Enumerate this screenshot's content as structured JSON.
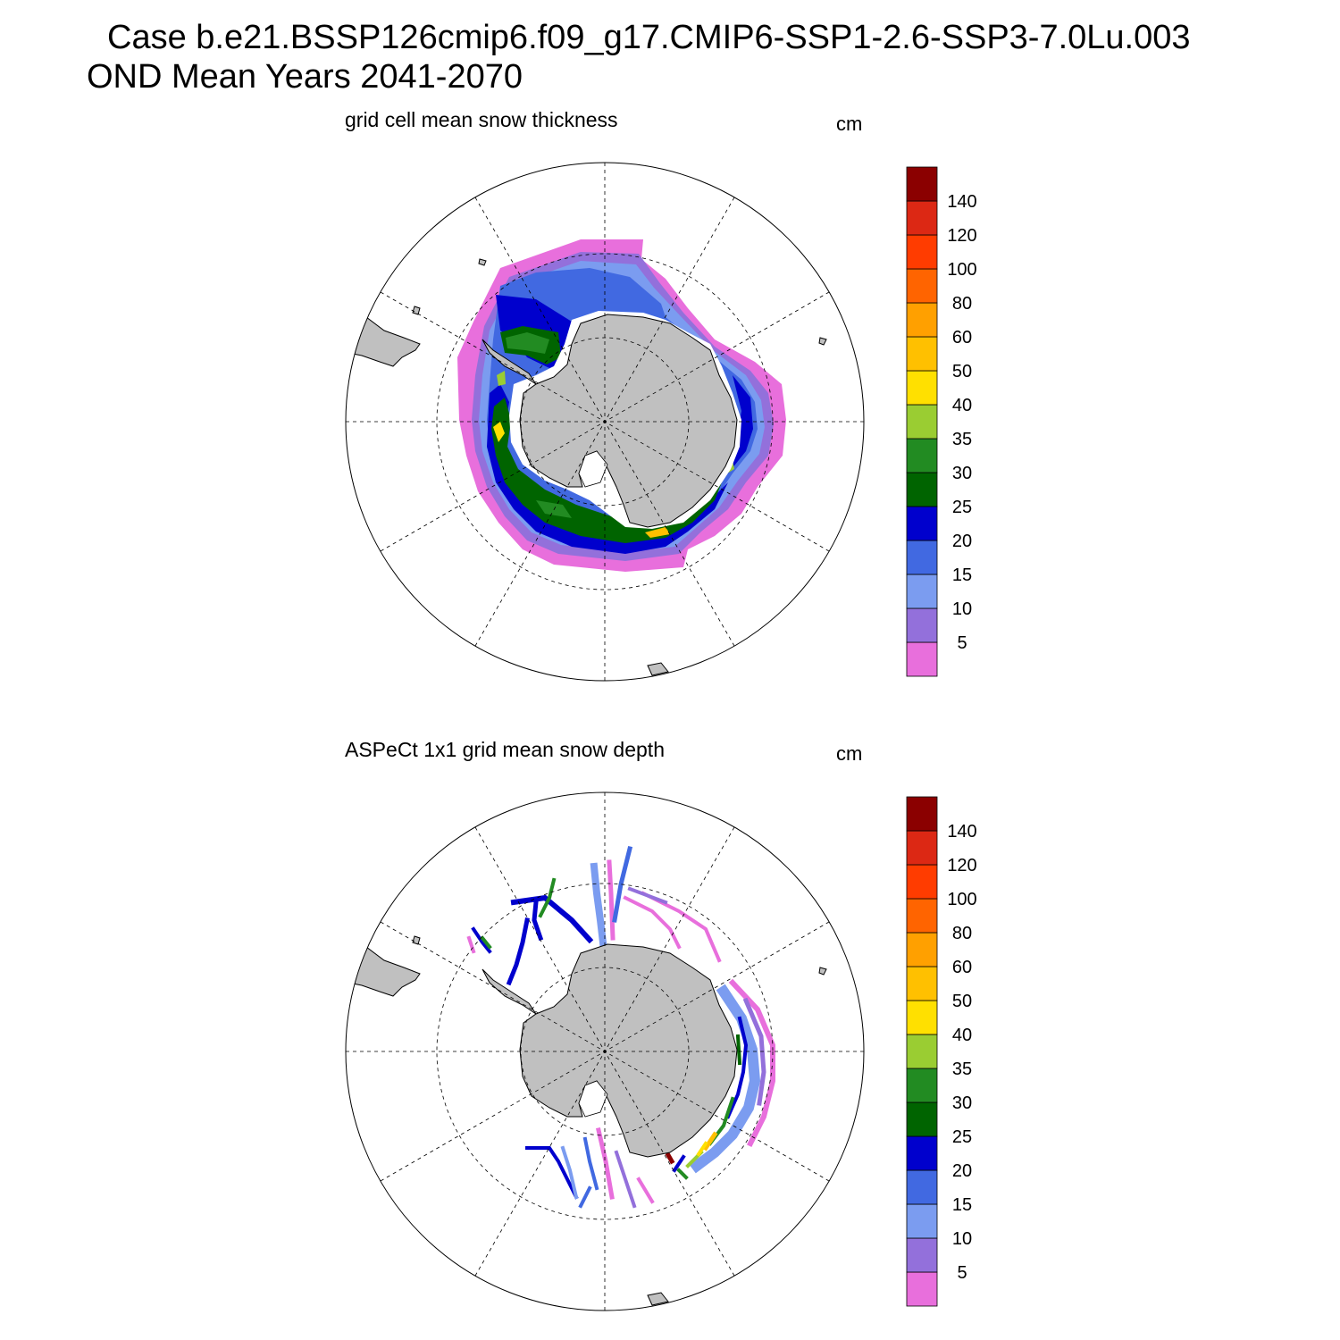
{
  "title_lines": [
    "Case b.e21.BSSP126cmip6.f09_g17.CMIP6-SSP1-2.6-SSP3-7.0Lu.003",
    "OND Mean   Years 2041-2070"
  ],
  "panels": [
    {
      "id": "model",
      "title": "grid cell mean snow thickness",
      "units": "cm"
    },
    {
      "id": "obs",
      "title": "ASPeCt 1x1 grid mean snow depth",
      "units": "cm"
    }
  ],
  "colorbar": {
    "labels": [
      "5",
      "10",
      "15",
      "20",
      "25",
      "30",
      "35",
      "40",
      "50",
      "60",
      "80",
      "100",
      "120",
      "140"
    ],
    "colors": [
      "#e86fdc",
      "#9370db",
      "#7b9cf0",
      "#4169e1",
      "#0000cd",
      "#006400",
      "#228b22",
      "#9acd32",
      "#ffe000",
      "#ffc000",
      "#ffa000",
      "#ff6400",
      "#ff3c00",
      "#dc2814",
      "#8b0000"
    ]
  },
  "map": {
    "projection": "south-polar-stereographic",
    "land_color": "#c0c0c0",
    "grid": true
  }
}
